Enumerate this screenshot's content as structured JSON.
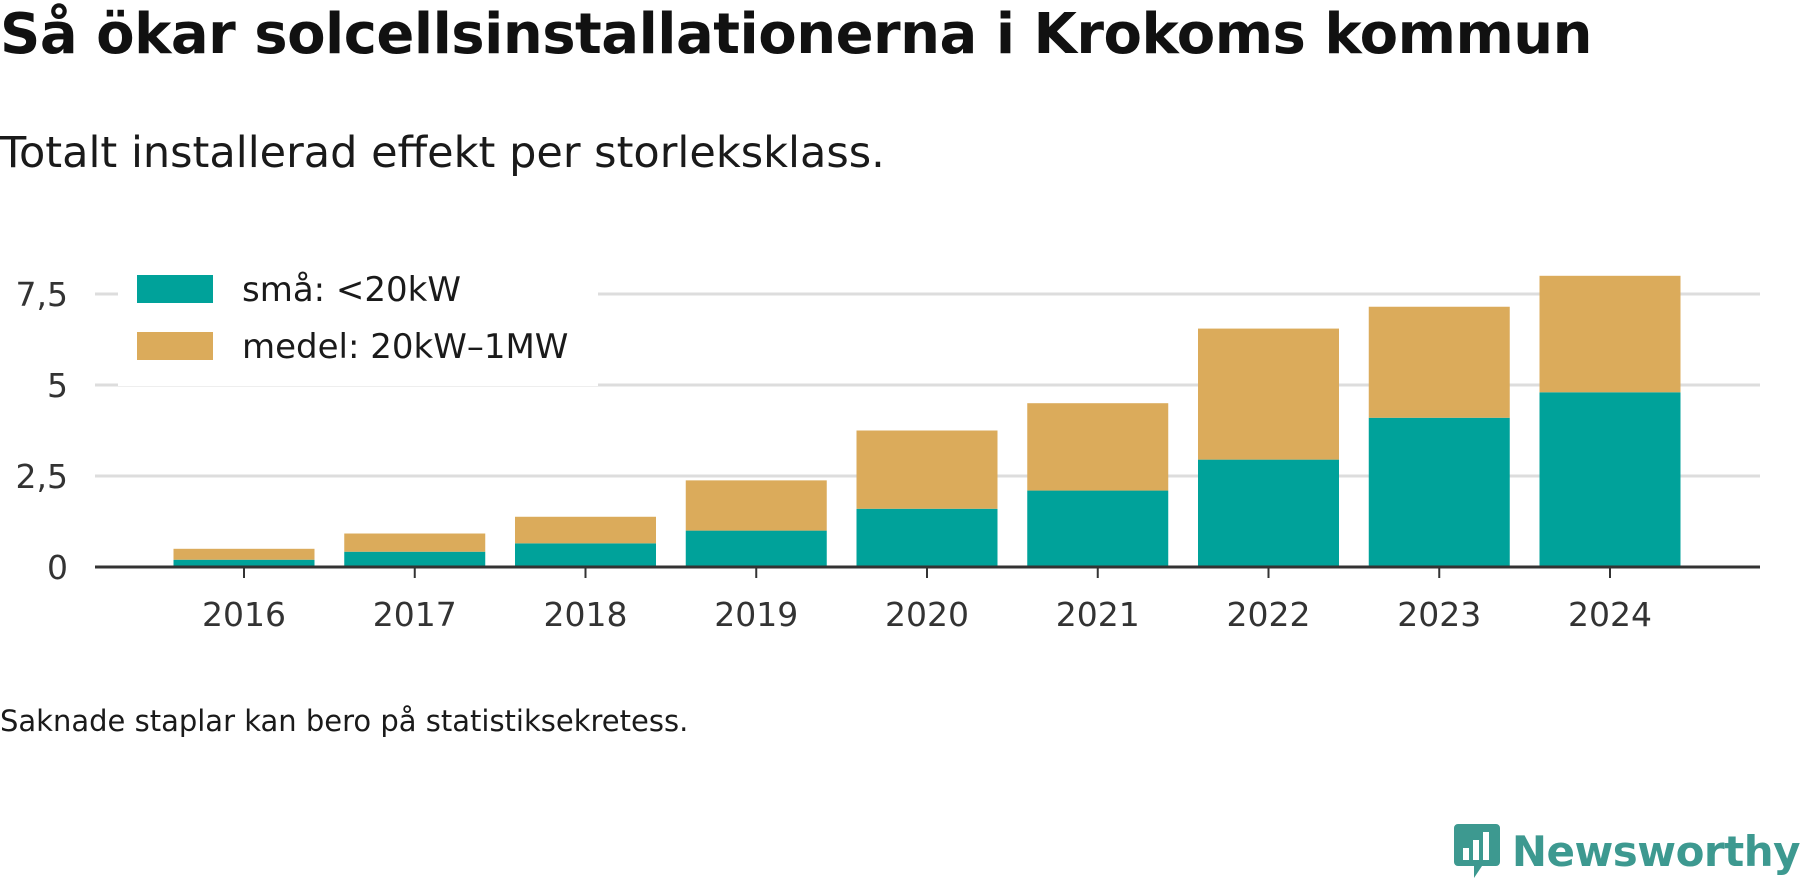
{
  "title": "Så ökar solcellsinstallationerna i Krokoms kommun",
  "subtitle": "Totalt installerad effekt per storleksklass.",
  "note": "Saknade staplar kan bero på statistiksekretess.",
  "brand": {
    "name": "Newsworthy",
    "icon": "newsworthy-logo-icon"
  },
  "colors": {
    "small": "#00a29a",
    "medium": "#dbab5b",
    "grid": "#dddddd",
    "axis": "#333333"
  },
  "chart_data": {
    "type": "bar",
    "stacked": true,
    "categories": [
      "2016",
      "2017",
      "2018",
      "2019",
      "2020",
      "2021",
      "2022",
      "2023",
      "2024"
    ],
    "series": [
      {
        "name": "små: <20kW",
        "color": "#00a29a",
        "values": [
          0.2,
          0.42,
          0.65,
          1.0,
          1.6,
          2.1,
          2.95,
          4.1,
          4.8
        ]
      },
      {
        "name": "medel: 20kW–1MW",
        "color": "#dbab5b",
        "values": [
          0.3,
          0.5,
          0.73,
          1.38,
          2.15,
          2.4,
          3.6,
          3.05,
          3.2
        ]
      }
    ],
    "yticks": [
      0,
      2.5,
      5,
      7.5
    ],
    "ytick_labels": [
      "0",
      "2,5",
      "5",
      "7,5"
    ],
    "ylim": [
      0,
      8.2
    ],
    "grid": true,
    "legend_position": "top-left"
  }
}
